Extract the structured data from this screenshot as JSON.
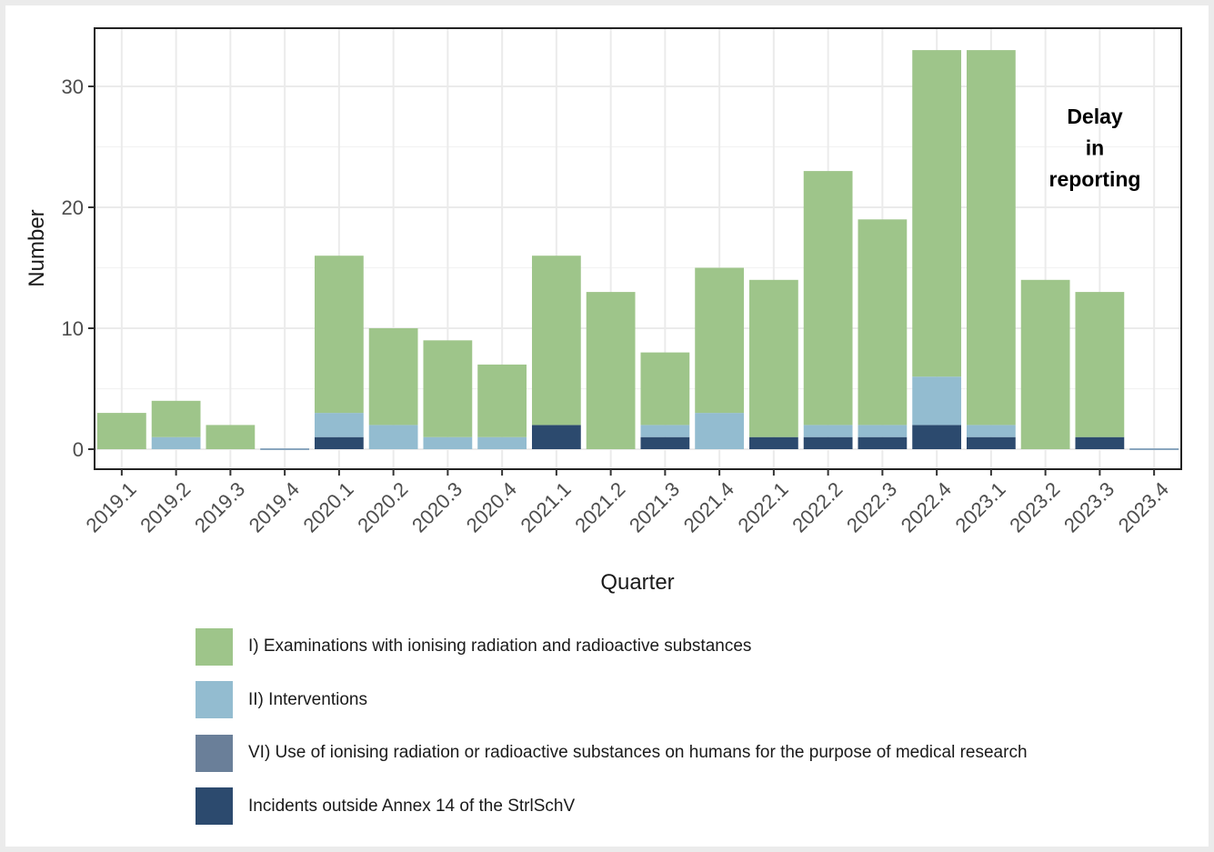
{
  "chart_data": {
    "type": "bar",
    "stacked": true,
    "xlabel": "Quarter",
    "ylabel": "Number",
    "ylim": [
      0,
      34
    ],
    "yticks": [
      0,
      10,
      20,
      30
    ],
    "grid": true,
    "legend_position": "bottom",
    "categories": [
      "2019.1",
      "2019.2",
      "2019.3",
      "2019.4",
      "2020.1",
      "2020.2",
      "2020.3",
      "2020.4",
      "2021.1",
      "2021.2",
      "2021.3",
      "2021.4",
      "2022.1",
      "2022.2",
      "2022.3",
      "2022.4",
      "2023.1",
      "2023.2",
      "2023.3",
      "2023.4"
    ],
    "series": [
      {
        "name": "Incidents outside Annex 14 of the StrlSchV",
        "color": "#2c4a6e",
        "values": [
          0,
          0,
          0,
          0,
          1,
          0,
          0,
          0,
          2,
          0,
          1,
          0,
          1,
          1,
          1,
          2,
          1,
          0,
          1,
          0
        ]
      },
      {
        "name": "VI) Use of ionising radiation or radioactive substances on humans for the purpose of medical research",
        "color": "#6a7f99",
        "values": [
          0,
          0,
          0,
          0,
          0,
          0,
          0,
          0,
          0,
          0,
          0,
          0,
          0,
          0,
          0,
          0,
          0,
          0,
          0,
          0
        ]
      },
      {
        "name": "II) Interventions",
        "color": "#93bcd0",
        "values": [
          0,
          1,
          0,
          0,
          2,
          2,
          1,
          1,
          0,
          0,
          1,
          3,
          0,
          1,
          1,
          4,
          1,
          0,
          0,
          0
        ]
      },
      {
        "name": "I) Examinations with ionising radiation and radioactive substances",
        "color": "#9ec58a",
        "values": [
          3,
          3,
          2,
          0,
          13,
          8,
          8,
          6,
          14,
          13,
          6,
          12,
          13,
          21,
          17,
          27,
          31,
          14,
          12,
          0
        ]
      }
    ],
    "annotation": {
      "lines": [
        "Delay",
        "in",
        "reporting"
      ]
    }
  },
  "legend": {
    "items": [
      {
        "label": "I) Examinations with ionising radiation and radioactive substances",
        "color": "#9ec58a"
      },
      {
        "label": "II) Interventions",
        "color": "#93bcd0"
      },
      {
        "label": "VI) Use of ionising radiation or radioactive substances on humans for the purpose of medical research",
        "color": "#6a7f99"
      },
      {
        "label": "Incidents outside Annex 14 of the StrlSchV",
        "color": "#2c4a6e"
      }
    ]
  }
}
